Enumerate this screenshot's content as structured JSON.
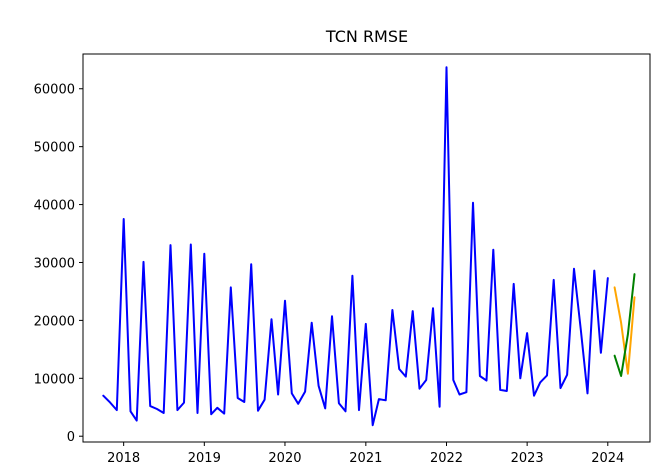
{
  "chart_data": {
    "type": "line",
    "title": "TCN RMSE",
    "xlabel": "",
    "ylabel": "",
    "grid": false,
    "xlim": [
      "2017-07-01",
      "2024-07-10"
    ],
    "ylim": [
      -1000,
      66000
    ],
    "x_ticks": [
      "2018",
      "2019",
      "2020",
      "2021",
      "2022",
      "2023",
      "2024"
    ],
    "y_ticks": [
      0,
      10000,
      20000,
      30000,
      40000,
      50000,
      60000
    ],
    "y_tick_labels": [
      "0",
      "10000",
      "20000",
      "30000",
      "40000",
      "50000",
      "60000"
    ],
    "series": [
      {
        "color": "#0000ff",
        "points": [
          [
            "2017-10-01",
            7000
          ],
          [
            "2017-11-01",
            5800
          ],
          [
            "2017-12-01",
            4500
          ],
          [
            "2018-01-01",
            37500
          ],
          [
            "2018-02-01",
            4300
          ],
          [
            "2018-03-01",
            2700
          ],
          [
            "2018-04-01",
            30100
          ],
          [
            "2018-05-01",
            5200
          ],
          [
            "2018-06-01",
            4700
          ],
          [
            "2018-07-01",
            4000
          ],
          [
            "2018-08-01",
            33000
          ],
          [
            "2018-09-01",
            4500
          ],
          [
            "2018-10-01",
            5800
          ],
          [
            "2018-11-01",
            33100
          ],
          [
            "2018-12-01",
            4000
          ],
          [
            "2019-01-01",
            31500
          ],
          [
            "2019-02-01",
            3800
          ],
          [
            "2019-03-01",
            4900
          ],
          [
            "2019-04-01",
            3900
          ],
          [
            "2019-05-01",
            25700
          ],
          [
            "2019-06-01",
            6600
          ],
          [
            "2019-07-01",
            5900
          ],
          [
            "2019-08-01",
            29700
          ],
          [
            "2019-09-01",
            4400
          ],
          [
            "2019-10-01",
            6300
          ],
          [
            "2019-11-01",
            20200
          ],
          [
            "2019-12-01",
            7200
          ],
          [
            "2020-01-01",
            23400
          ],
          [
            "2020-02-01",
            7400
          ],
          [
            "2020-03-01",
            5600
          ],
          [
            "2020-04-01",
            7700
          ],
          [
            "2020-05-01",
            19600
          ],
          [
            "2020-06-01",
            8700
          ],
          [
            "2020-07-01",
            4800
          ],
          [
            "2020-08-01",
            20700
          ],
          [
            "2020-09-01",
            5700
          ],
          [
            "2020-10-01",
            4300
          ],
          [
            "2020-11-01",
            27700
          ],
          [
            "2020-12-01",
            4500
          ],
          [
            "2021-01-01",
            19400
          ],
          [
            "2021-02-01",
            1900
          ],
          [
            "2021-03-01",
            6400
          ],
          [
            "2021-04-01",
            6200
          ],
          [
            "2021-05-01",
            21800
          ],
          [
            "2021-06-01",
            11600
          ],
          [
            "2021-07-01",
            10300
          ],
          [
            "2021-08-01",
            21600
          ],
          [
            "2021-09-01",
            8200
          ],
          [
            "2021-10-01",
            9700
          ],
          [
            "2021-11-01",
            22100
          ],
          [
            "2021-12-01",
            5100
          ],
          [
            "2022-01-01",
            63700
          ],
          [
            "2022-02-01",
            9700
          ],
          [
            "2022-03-01",
            7200
          ],
          [
            "2022-04-01",
            7600
          ],
          [
            "2022-05-01",
            40300
          ],
          [
            "2022-06-01",
            10400
          ],
          [
            "2022-07-01",
            9600
          ],
          [
            "2022-08-01",
            32200
          ],
          [
            "2022-09-01",
            8000
          ],
          [
            "2022-10-01",
            7800
          ],
          [
            "2022-11-01",
            26300
          ],
          [
            "2022-12-01",
            10000
          ],
          [
            "2023-01-01",
            17800
          ],
          [
            "2023-02-01",
            7000
          ],
          [
            "2023-03-01",
            9300
          ],
          [
            "2023-04-01",
            10500
          ],
          [
            "2023-05-01",
            27000
          ],
          [
            "2023-06-01",
            8300
          ],
          [
            "2023-07-01",
            10600
          ],
          [
            "2023-08-01",
            28900
          ],
          [
            "2023-09-01",
            18400
          ],
          [
            "2023-10-01",
            7400
          ],
          [
            "2023-11-01",
            28600
          ],
          [
            "2023-12-01",
            14400
          ],
          [
            "2024-01-01",
            27300
          ]
        ]
      },
      {
        "color": "#ffa500",
        "points": [
          [
            "2024-02-01",
            25700
          ],
          [
            "2024-03-01",
            19600
          ],
          [
            "2024-04-01",
            10800
          ],
          [
            "2024-05-01",
            24000
          ]
        ]
      },
      {
        "color": "#008000",
        "points": [
          [
            "2024-02-01",
            13900
          ],
          [
            "2024-03-01",
            10400
          ],
          [
            "2024-04-01",
            17600
          ],
          [
            "2024-05-01",
            28000
          ]
        ]
      }
    ]
  }
}
